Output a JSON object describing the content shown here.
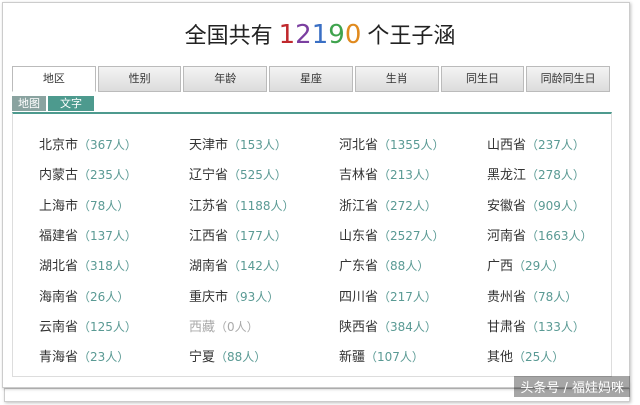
{
  "header": {
    "prefix": "全国共有",
    "number": "12190",
    "suffix": "个王子涵",
    "number_colors": [
      "#c0282d",
      "#7b3fa0",
      "#3a6fc4",
      "#3fa34d",
      "#e08a1e"
    ]
  },
  "tabs": [
    "地区",
    "性别",
    "年龄",
    "星座",
    "生肖",
    "同生日",
    "同龄同生日"
  ],
  "subtabs": [
    "地图",
    "文字"
  ],
  "table": {
    "rows": [
      [
        {
          "name": "北京市",
          "count": "（367人）"
        },
        {
          "name": "天津市",
          "count": "（153人）"
        },
        {
          "name": "河北省",
          "count": "（1355人）"
        },
        {
          "name": "山西省",
          "count": "（237人）"
        }
      ],
      [
        {
          "name": "内蒙古",
          "count": "（235人）"
        },
        {
          "name": "辽宁省",
          "count": "（525人）"
        },
        {
          "name": "吉林省",
          "count": "（213人）"
        },
        {
          "name": "黑龙江",
          "count": "（278人）"
        }
      ],
      [
        {
          "name": "上海市",
          "count": "（78人）"
        },
        {
          "name": "江苏省",
          "count": "（1188人）"
        },
        {
          "name": "浙江省",
          "count": "（272人）"
        },
        {
          "name": "安徽省",
          "count": "（909人）"
        }
      ],
      [
        {
          "name": "福建省",
          "count": "（137人）"
        },
        {
          "name": "江西省",
          "count": "（177人）"
        },
        {
          "name": "山东省",
          "count": "（2527人）"
        },
        {
          "name": "河南省",
          "count": "（1663人）"
        }
      ],
      [
        {
          "name": "湖北省",
          "count": "（318人）"
        },
        {
          "name": "湖南省",
          "count": "（142人）"
        },
        {
          "name": "广东省",
          "count": "（88人）"
        },
        {
          "name": "广西",
          "count": "（29人）"
        }
      ],
      [
        {
          "name": "海南省",
          "count": "（26人）"
        },
        {
          "name": "重庆市",
          "count": "（93人）"
        },
        {
          "name": "四川省",
          "count": "（217人）"
        },
        {
          "name": "贵州省",
          "count": "（78人）"
        }
      ],
      [
        {
          "name": "云南省",
          "count": "（125人）"
        },
        {
          "name": "西藏",
          "count": "（0人）"
        },
        {
          "name": "陕西省",
          "count": "（384人）"
        },
        {
          "name": "甘肃省",
          "count": "（133人）"
        }
      ],
      [
        {
          "name": "青海省",
          "count": "（23人）"
        },
        {
          "name": "宁夏",
          "count": "（88人）"
        },
        {
          "name": "新疆",
          "count": "（107人）"
        },
        {
          "name": "其他",
          "count": "（25人）"
        }
      ]
    ]
  },
  "watermark": "头条号 / 福娃妈咪"
}
